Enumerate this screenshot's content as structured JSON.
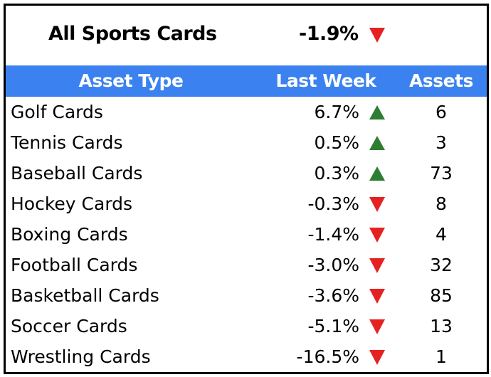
{
  "summary": {
    "label": "All Sports Cards",
    "change": "-1.9%",
    "direction": "down"
  },
  "colors": {
    "header_bg": "#3b82f0",
    "up": "#2e7d32",
    "down": "#e52222"
  },
  "chart_data": {
    "type": "table",
    "columns": [
      "Asset Type",
      "Last Week",
      "Assets"
    ],
    "rows": [
      {
        "name": "Golf Cards",
        "change": "6.7%",
        "direction": "up",
        "assets": "6"
      },
      {
        "name": "Tennis Cards",
        "change": "0.5%",
        "direction": "up",
        "assets": "3"
      },
      {
        "name": "Baseball Cards",
        "change": "0.3%",
        "direction": "up",
        "assets": "73"
      },
      {
        "name": "Hockey Cards",
        "change": "-0.3%",
        "direction": "down",
        "assets": "8"
      },
      {
        "name": "Boxing Cards",
        "change": "-1.4%",
        "direction": "down",
        "assets": "4"
      },
      {
        "name": "Football Cards",
        "change": "-3.0%",
        "direction": "down",
        "assets": "32"
      },
      {
        "name": "Basketball Cards",
        "change": "-3.6%",
        "direction": "down",
        "assets": "85"
      },
      {
        "name": "Soccer Cards",
        "change": "-5.1%",
        "direction": "down",
        "assets": "13"
      },
      {
        "name": "Wrestling Cards",
        "change": "-16.5%",
        "direction": "down",
        "assets": "1"
      }
    ]
  }
}
